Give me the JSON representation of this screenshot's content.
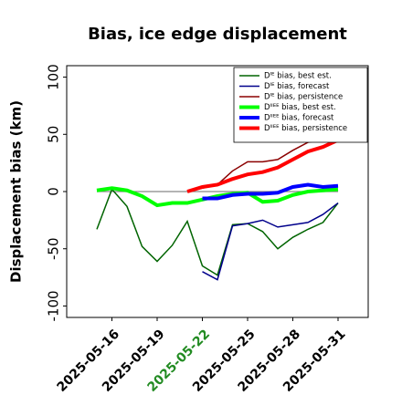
{
  "chart_data": {
    "type": "line",
    "title": "Bias, ice edge displacement",
    "ylabel": "Displacement bias (km)",
    "x": [
      "2025-05-15",
      "2025-05-16",
      "2025-05-17",
      "2025-05-18",
      "2025-05-19",
      "2025-05-20",
      "2025-05-21",
      "2025-05-22",
      "2025-05-23",
      "2025-05-24",
      "2025-05-25",
      "2025-05-26",
      "2025-05-27",
      "2025-05-28",
      "2025-05-29",
      "2025-05-30",
      "2025-05-31"
    ],
    "xlim": [
      "2025-05-13",
      "2025-06-02"
    ],
    "xticks": [
      "2025-05-16",
      "2025-05-19",
      "2025-05-22",
      "2025-05-25",
      "2025-05-28",
      "2025-05-31"
    ],
    "highlight_xtick": 2,
    "highlight_color": "#228b22",
    "ylim": [
      -110,
      110
    ],
    "yticks": [
      -100,
      -50,
      0,
      50,
      100
    ],
    "reference_line": 0,
    "legend": "upper right",
    "series": [
      {
        "name": "Dᴵᴱ bias, best est.",
        "color": "#006400",
        "width": 1.5,
        "values": [
          -33,
          2,
          -13,
          -48,
          -61,
          -47,
          -26,
          -65,
          -73,
          -29,
          -28,
          -35,
          -50,
          -40,
          -33,
          -27,
          -10
        ]
      },
      {
        "name": "Dᴵᴱ bias, forecast",
        "color": "#00008b",
        "width": 1.5,
        "values": [
          null,
          null,
          null,
          null,
          null,
          null,
          null,
          -70,
          -77,
          -30,
          -28,
          -25,
          -31,
          -29,
          -27,
          -20,
          -10
        ]
      },
      {
        "name": "Dᴵᴱ bias, persistence",
        "color": "#8b0000",
        "width": 1.5,
        "values": [
          null,
          null,
          null,
          null,
          null,
          null,
          0,
          3,
          6,
          18,
          26,
          26,
          28,
          36,
          43,
          45,
          48
        ]
      },
      {
        "name": "Dᴵᴵᴱᴱ bias, best est.",
        "color": "#00ff00",
        "width": 4,
        "values": [
          1,
          3,
          1,
          -4,
          -12,
          -10,
          -10,
          -7,
          -4,
          -2,
          -1,
          -9,
          -8,
          -3,
          0,
          1,
          2
        ]
      },
      {
        "name": "Dᴵᴵᴱᴱ bias, forecast",
        "color": "#0000ff",
        "width": 4,
        "values": [
          null,
          null,
          null,
          null,
          null,
          null,
          null,
          -6,
          -6,
          -3,
          -2,
          -2,
          -1,
          4,
          6,
          4,
          5
        ]
      },
      {
        "name": "Dᴵᴵᴱᴱ bias, persistence",
        "color": "#ff0000",
        "width": 4,
        "values": [
          null,
          null,
          null,
          null,
          null,
          null,
          0,
          4,
          6,
          11,
          15,
          17,
          21,
          28,
          35,
          39,
          45
        ]
      }
    ]
  }
}
